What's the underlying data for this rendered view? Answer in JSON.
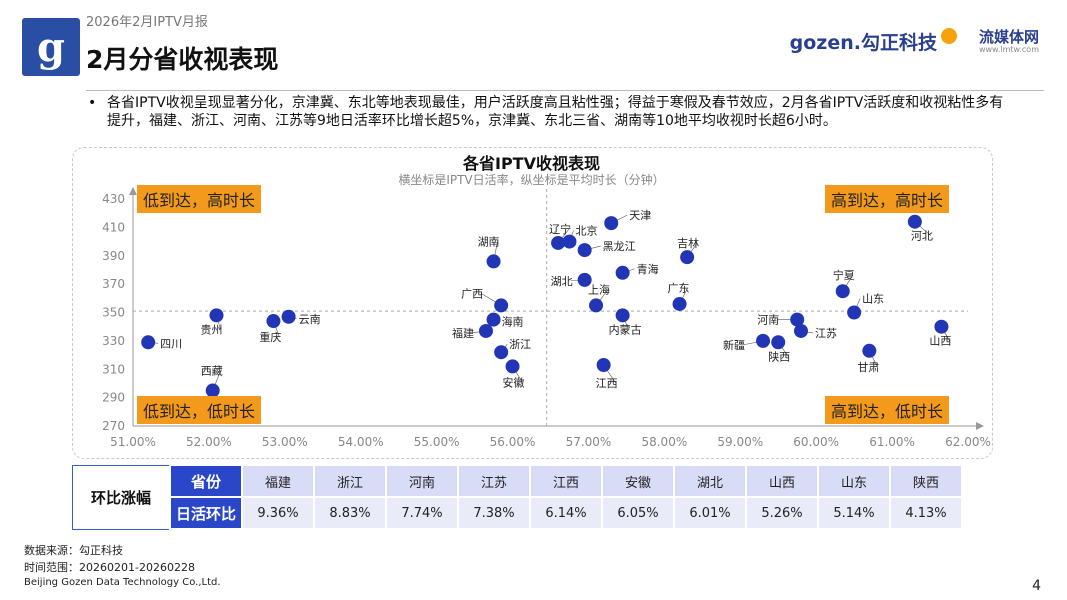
{
  "header": {
    "report_label": "2026年2月IPTV月报",
    "logo_letter": "g",
    "title": "2月分省收视表现",
    "brand_gozen": "gozen.勾正科技",
    "brand_lmtw": "流媒体网",
    "brand_lmtw_url": "www.lmtw.com"
  },
  "summary": {
    "bullet": "•",
    "text": "各省IPTV收视呈现显著分化，京津冀、东北等地表现最佳，用户活跃度高且粘性强；得益于寒假及春节效应，2月各省IPTV活跃度和收视粘性多有提升，福建、浙江、河南、江苏等9地日活率环比增长超5%，京津冀、东北三省、湖南等10地平均收视时长超6小时。"
  },
  "quadrants": {
    "top_left": "低到达，高时长",
    "top_right": "高到达，高时长",
    "bottom_left": "低到达，低时长",
    "bottom_right": "高到达，低时长"
  },
  "chart_data": {
    "type": "scatter",
    "title": "各省IPTV收视表现",
    "subtitle": "横坐标是IPTV日活率，纵坐标是平均时长（分钟）",
    "xlabel": "IPTV日活率",
    "ylabel": "平均时长（分钟）",
    "xlim": [
      51,
      62
    ],
    "ylim": [
      270,
      430
    ],
    "x_ticks": [
      "51.00%",
      "52.00%",
      "53.00%",
      "54.00%",
      "55.00%",
      "56.00%",
      "57.00%",
      "58.00%",
      "59.00%",
      "60.00%",
      "61.00%",
      "62.00%"
    ],
    "y_ticks": [
      "270",
      "290",
      "310",
      "330",
      "350",
      "370",
      "390",
      "410",
      "430"
    ],
    "x_divider": 56.45,
    "y_divider": 351,
    "points": [
      {
        "name": "四川",
        "x": 51.2,
        "y": 329
      },
      {
        "name": "贵州",
        "x": 52.1,
        "y": 348
      },
      {
        "name": "西藏",
        "x": 52.05,
        "y": 295
      },
      {
        "name": "重庆",
        "x": 52.85,
        "y": 344
      },
      {
        "name": "云南",
        "x": 53.05,
        "y": 347
      },
      {
        "name": "湖南",
        "x": 55.75,
        "y": 386
      },
      {
        "name": "广西",
        "x": 55.85,
        "y": 355
      },
      {
        "name": "海南",
        "x": 55.75,
        "y": 345
      },
      {
        "name": "福建",
        "x": 55.65,
        "y": 337
      },
      {
        "name": "浙江",
        "x": 55.85,
        "y": 322
      },
      {
        "name": "安徽",
        "x": 56.0,
        "y": 312
      },
      {
        "name": "辽宁",
        "x": 56.6,
        "y": 399
      },
      {
        "name": "北京",
        "x": 56.75,
        "y": 400
      },
      {
        "name": "天津",
        "x": 57.3,
        "y": 413
      },
      {
        "name": "黑龙江",
        "x": 56.95,
        "y": 394
      },
      {
        "name": "湖北",
        "x": 56.95,
        "y": 373
      },
      {
        "name": "青海",
        "x": 57.45,
        "y": 378
      },
      {
        "name": "上海",
        "x": 57.1,
        "y": 355
      },
      {
        "name": "内蒙古",
        "x": 57.45,
        "y": 348
      },
      {
        "name": "江西",
        "x": 57.2,
        "y": 313
      },
      {
        "name": "吉林",
        "x": 58.3,
        "y": 389
      },
      {
        "name": "广东",
        "x": 58.2,
        "y": 356
      },
      {
        "name": "河北",
        "x": 61.3,
        "y": 414
      },
      {
        "name": "宁夏",
        "x": 60.35,
        "y": 365
      },
      {
        "name": "山东",
        "x": 60.5,
        "y": 350
      },
      {
        "name": "河南",
        "x": 59.75,
        "y": 345
      },
      {
        "name": "江苏",
        "x": 59.8,
        "y": 337
      },
      {
        "name": "新疆",
        "x": 59.3,
        "y": 330
      },
      {
        "name": "陕西",
        "x": 59.5,
        "y": 329
      },
      {
        "name": "甘肃",
        "x": 60.7,
        "y": 323
      },
      {
        "name": "山西",
        "x": 61.65,
        "y": 340
      }
    ]
  },
  "table": {
    "row_header": "环比涨幅",
    "province_label": "省份",
    "growth_label": "日活环比",
    "provinces": [
      "福建",
      "浙江",
      "河南",
      "江苏",
      "江西",
      "安徽",
      "湖北",
      "山西",
      "山东",
      "陕西"
    ],
    "growth": [
      "9.36%",
      "8.83%",
      "7.74%",
      "7.38%",
      "6.14%",
      "6.05%",
      "6.01%",
      "5.26%",
      "5.14%",
      "4.13%"
    ]
  },
  "footer": {
    "source": "数据来源：勾正科技",
    "period": "时间范围：20260201-20260228",
    "company": "Beijing Gozen Data Technology Co.,Ltd.",
    "page": "4"
  },
  "colors": {
    "point": "#2236b5",
    "quadrant_bg": "#f39a1c",
    "table_header": "#2a46c9"
  }
}
